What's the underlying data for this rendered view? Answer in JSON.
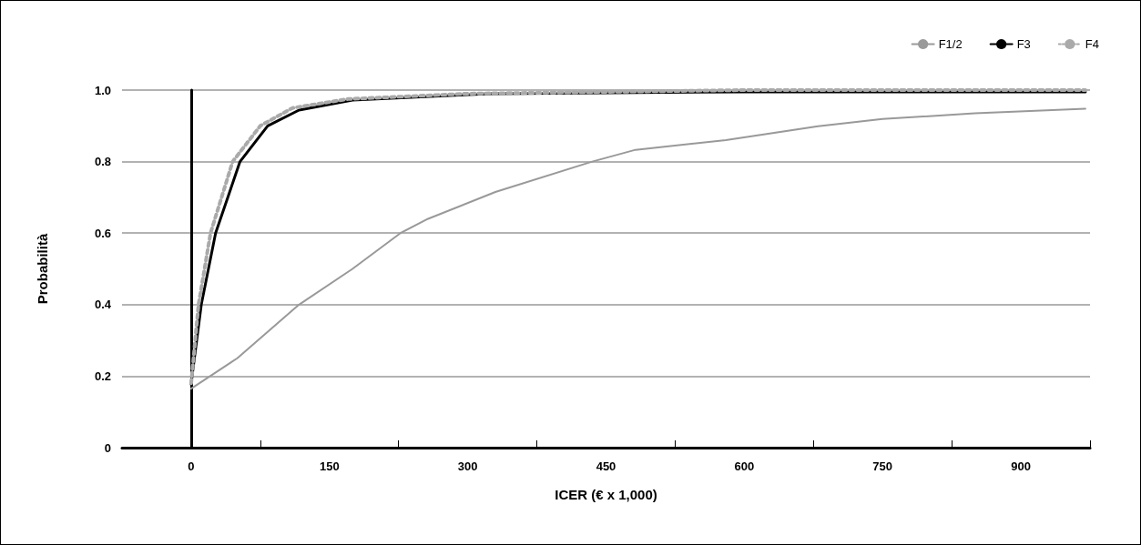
{
  "chart_data": {
    "type": "line",
    "xlabel": "ICER (€ x 1,000)",
    "ylabel": "Probabilità",
    "xlim": [
      -75,
      975
    ],
    "xticks": [
      0,
      150,
      300,
      450,
      600,
      750,
      900,
      {
        "value": 75,
        "label": null
      },
      {
        "value": 225,
        "label": null
      },
      {
        "value": 375,
        "label": null
      },
      {
        "value": 525,
        "label": null
      },
      {
        "value": 675,
        "label": null
      },
      {
        "value": 825,
        "label": null
      },
      {
        "value": 975,
        "label": null
      }
    ],
    "ylim": [
      0,
      1
    ],
    "yticks": [
      0,
      0.2,
      0.4,
      0.6,
      0.8,
      {
        "value": 1,
        "label": "1.0"
      }
    ],
    "grid": "y",
    "legend": "top right",
    "marker": "none",
    "series": [
      {
        "name": "F1/2",
        "color": "#999999",
        "line_style": "solid",
        "x": [
          0,
          50,
          117,
          175,
          227,
          257,
          330,
          435,
          482,
          580,
          680,
          750,
          850,
          970
        ],
        "values": [
          0.165,
          0.25,
          0.4,
          0.5,
          0.6,
          0.64,
          0.715,
          0.8,
          0.833,
          0.86,
          0.899,
          0.919,
          0.935,
          0.948
        ]
      },
      {
        "name": "F3",
        "color": "#000000",
        "line_style": "solid",
        "x": [
          0,
          1,
          11,
          26.5,
          53,
          83,
          117,
          175,
          325,
          600,
          970
        ],
        "values": [
          0.177,
          0.2,
          0.4,
          0.6,
          0.8,
          0.9,
          0.944,
          0.972,
          0.99,
          0.995,
          0.995
        ]
      },
      {
        "name": "F4",
        "color": "#aaaaaa",
        "line_style": "dotted",
        "x": [
          0,
          8,
          21,
          45,
          75,
          110,
          170,
          300,
          600,
          970
        ],
        "values": [
          0.18,
          0.4,
          0.6,
          0.8,
          0.9,
          0.95,
          0.975,
          0.99,
          1.0,
          1.0
        ]
      }
    ]
  }
}
